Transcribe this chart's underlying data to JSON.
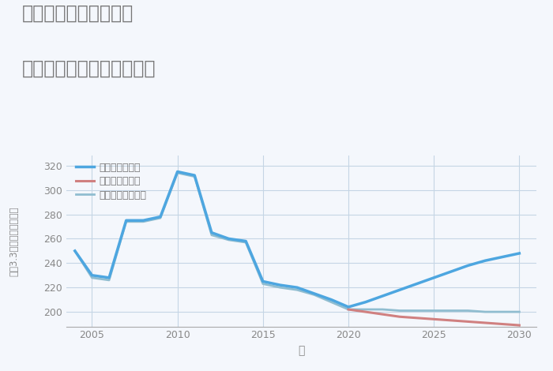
{
  "title_line1": "兵庫県西宮市和上町の",
  "title_line2": "中古マンションの価格推移",
  "xlabel": "年",
  "ylabel_chars": [
    "坪",
    "（",
    "3",
    ".",
    "3",
    "㎡",
    "）",
    "単",
    "価",
    "（",
    "万",
    "円",
    "）"
  ],
  "xlim": [
    2003.5,
    2031
  ],
  "ylim": [
    188,
    328
  ],
  "yticks": [
    200,
    220,
    240,
    260,
    280,
    300,
    320
  ],
  "xticks": [
    2005,
    2010,
    2015,
    2020,
    2025,
    2030
  ],
  "background_color": "#f4f7fc",
  "plot_bg_color": "#f4f7fc",
  "title_color": "#777777",
  "axis_color": "#aaaaaa",
  "tick_color": "#888888",
  "grid_color": "#c5d5e5",
  "good_scenario": {
    "label": "グッドシナリオ",
    "color": "#4da6e0",
    "linewidth": 2.5,
    "x": [
      2004,
      2005,
      2006,
      2007,
      2008,
      2009,
      2010,
      2011,
      2012,
      2013,
      2014,
      2015,
      2016,
      2017,
      2018,
      2019,
      2020,
      2021,
      2022,
      2023,
      2024,
      2025,
      2026,
      2027,
      2028,
      2029,
      2030
    ],
    "y": [
      250,
      230,
      228,
      275,
      275,
      278,
      315,
      312,
      265,
      260,
      258,
      225,
      222,
      220,
      215,
      210,
      204,
      208,
      213,
      218,
      223,
      228,
      233,
      238,
      242,
      245,
      248
    ]
  },
  "bad_scenario": {
    "label": "バッドシナリオ",
    "color": "#d08080",
    "linewidth": 2.2,
    "x": [
      2020,
      2021,
      2022,
      2023,
      2024,
      2025,
      2026,
      2027,
      2028,
      2029,
      2030
    ],
    "y": [
      202,
      200,
      198,
      196,
      195,
      194,
      193,
      192,
      191,
      190,
      189
    ]
  },
  "normal_scenario": {
    "label": "ノーマルシナリオ",
    "color": "#90bdd0",
    "linewidth": 2.0,
    "x": [
      2004,
      2005,
      2006,
      2007,
      2008,
      2009,
      2010,
      2011,
      2012,
      2013,
      2014,
      2015,
      2016,
      2017,
      2018,
      2019,
      2020,
      2021,
      2022,
      2023,
      2024,
      2025,
      2026,
      2027,
      2028,
      2029,
      2030
    ],
    "y": [
      250,
      228,
      226,
      274,
      274,
      277,
      314,
      311,
      263,
      259,
      257,
      223,
      220,
      218,
      214,
      208,
      202,
      202,
      202,
      201,
      201,
      201,
      201,
      201,
      200,
      200,
      200
    ]
  }
}
